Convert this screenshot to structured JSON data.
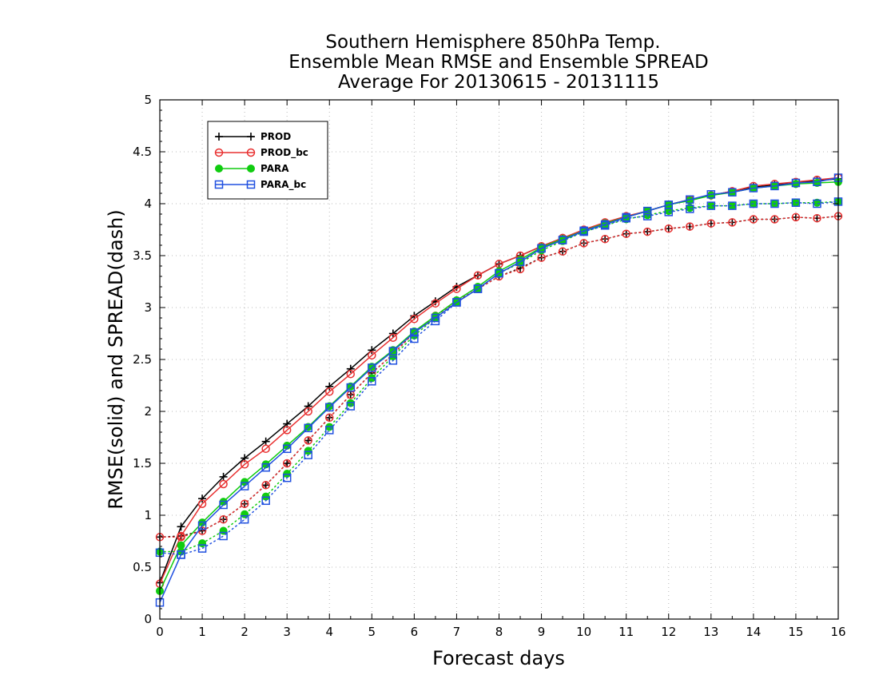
{
  "chart_data": {
    "type": "line",
    "title": [
      "Southern Hemisphere 850hPa Temp.",
      "Ensemble Mean RMSE and Ensemble SPREAD",
      "Average For 20130615 - 20131115"
    ],
    "xlabel": "Forecast days",
    "ylabel": "RMSE(solid) and SPREAD(dash)",
    "xlim": [
      0,
      16
    ],
    "ylim": [
      0,
      5
    ],
    "xticks": [
      "0",
      "1",
      "2",
      "3",
      "4",
      "5",
      "6",
      "7",
      "8",
      "9",
      "10",
      "11",
      "12",
      "13",
      "14",
      "15",
      "16"
    ],
    "yticks": [
      "0",
      "0.5",
      "1",
      "1.5",
      "2",
      "2.5",
      "3",
      "3.5",
      "4",
      "4.5",
      "5"
    ],
    "grid": true,
    "legend_position": "top-left",
    "x": [
      0,
      0.5,
      1,
      1.5,
      2,
      2.5,
      3,
      3.5,
      4,
      4.5,
      5,
      5.5,
      6,
      6.5,
      7,
      7.5,
      8,
      8.5,
      9,
      9.5,
      10,
      10.5,
      11,
      11.5,
      12,
      12.5,
      13,
      13.5,
      14,
      14.5,
      15,
      15.5,
      16
    ],
    "series": [
      {
        "name": "PROD",
        "color": "#000000",
        "marker": "plus",
        "rmse": [
          0.35,
          0.89,
          1.16,
          1.37,
          1.55,
          1.71,
          1.88,
          2.05,
          2.24,
          2.41,
          2.59,
          2.75,
          2.92,
          3.06,
          3.2,
          3.31,
          3.42,
          3.5,
          3.59,
          3.67,
          3.74,
          3.81,
          3.87,
          3.93,
          3.99,
          4.04,
          4.08,
          4.12,
          4.16,
          4.18,
          4.2,
          4.22,
          4.24
        ],
        "spread": [
          0.79,
          0.8,
          0.85,
          0.96,
          1.11,
          1.29,
          1.5,
          1.72,
          1.94,
          2.16,
          2.37,
          2.55,
          2.76,
          2.92,
          3.06,
          3.18,
          3.3,
          3.38,
          3.48,
          3.54,
          3.62,
          3.66,
          3.71,
          3.73,
          3.76,
          3.78,
          3.81,
          3.82,
          3.85,
          3.85,
          3.87,
          3.86,
          3.88
        ]
      },
      {
        "name": "PROD_bc",
        "color": "#e83030",
        "marker": "open-circle",
        "rmse": [
          0.34,
          0.8,
          1.11,
          1.3,
          1.49,
          1.64,
          1.82,
          2.0,
          2.19,
          2.36,
          2.54,
          2.71,
          2.89,
          3.04,
          3.18,
          3.31,
          3.42,
          3.5,
          3.59,
          3.67,
          3.75,
          3.82,
          3.88,
          3.93,
          3.99,
          4.04,
          4.08,
          4.12,
          4.17,
          4.19,
          4.21,
          4.23,
          4.25
        ],
        "spread": [
          0.79,
          0.79,
          0.85,
          0.96,
          1.11,
          1.29,
          1.5,
          1.72,
          1.94,
          2.16,
          2.37,
          2.55,
          2.76,
          2.92,
          3.06,
          3.18,
          3.3,
          3.37,
          3.48,
          3.54,
          3.62,
          3.66,
          3.71,
          3.73,
          3.76,
          3.78,
          3.81,
          3.82,
          3.85,
          3.85,
          3.87,
          3.86,
          3.88
        ]
      },
      {
        "name": "PARA",
        "color": "#10cc10",
        "marker": "filled-circle",
        "rmse": [
          0.27,
          0.71,
          0.93,
          1.13,
          1.32,
          1.49,
          1.67,
          1.85,
          2.05,
          2.24,
          2.43,
          2.59,
          2.77,
          2.92,
          3.07,
          3.2,
          3.35,
          3.46,
          3.58,
          3.66,
          3.74,
          3.81,
          3.87,
          3.93,
          3.99,
          4.03,
          4.08,
          4.11,
          4.15,
          4.17,
          4.19,
          4.2,
          4.21
        ],
        "spread": [
          0.65,
          0.65,
          0.73,
          0.85,
          1.01,
          1.18,
          1.4,
          1.62,
          1.85,
          2.08,
          2.32,
          2.53,
          2.73,
          2.9,
          3.05,
          3.18,
          3.33,
          3.43,
          3.55,
          3.64,
          3.73,
          3.79,
          3.85,
          3.89,
          3.93,
          3.96,
          3.98,
          3.98,
          4.0,
          4.0,
          4.01,
          4.01,
          4.02
        ]
      },
      {
        "name": "PARA_bc",
        "color": "#2050e0",
        "marker": "open-square",
        "rmse": [
          0.16,
          0.62,
          0.9,
          1.1,
          1.28,
          1.46,
          1.64,
          1.84,
          2.04,
          2.23,
          2.42,
          2.58,
          2.76,
          2.9,
          3.05,
          3.18,
          3.33,
          3.44,
          3.57,
          3.65,
          3.74,
          3.8,
          3.87,
          3.93,
          3.99,
          4.04,
          4.09,
          4.11,
          4.15,
          4.17,
          4.2,
          4.21,
          4.25
        ],
        "spread": [
          0.64,
          0.62,
          0.68,
          0.8,
          0.96,
          1.14,
          1.36,
          1.58,
          1.82,
          2.05,
          2.29,
          2.49,
          2.7,
          2.87,
          3.05,
          3.18,
          3.33,
          3.44,
          3.57,
          3.65,
          3.73,
          3.79,
          3.86,
          3.88,
          3.92,
          3.95,
          3.98,
          3.98,
          4.0,
          4.0,
          4.01,
          4.0,
          4.02
        ]
      }
    ]
  }
}
